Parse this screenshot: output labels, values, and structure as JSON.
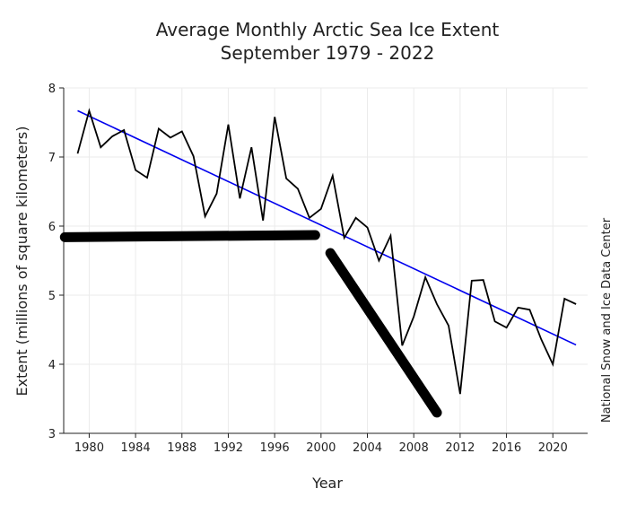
{
  "chart_data": {
    "type": "line",
    "title_line1": "Average Monthly Arctic Sea Ice Extent",
    "title_line2": "September 1979 - 2022",
    "xlabel": "Year",
    "ylabel": "Extent (millions of square kilometers)",
    "credit": "National Snow and Ice Data Center",
    "xlim": [
      1977.8,
      2023
    ],
    "ylim": [
      3,
      8
    ],
    "xticks": [
      1980,
      1984,
      1988,
      1992,
      1996,
      2000,
      2004,
      2008,
      2012,
      2016,
      2020
    ],
    "yticks": [
      3,
      4,
      5,
      6,
      7,
      8
    ],
    "grid": true,
    "series": [
      {
        "color": "#000000",
        "x": [
          1979,
          1980,
          1981,
          1982,
          1983,
          1984,
          1985,
          1986,
          1987,
          1988,
          1989,
          1990,
          1991,
          1992,
          1993,
          1994,
          1995,
          1996,
          1997,
          1998,
          1999,
          2000,
          2001,
          2002,
          2003,
          2004,
          2005,
          2006,
          2007,
          2008,
          2009,
          2010,
          2011,
          2012,
          2013,
          2014,
          2015,
          2016,
          2017,
          2018,
          2019,
          2020,
          2021,
          2022
        ],
        "values": [
          7.05,
          7.67,
          7.14,
          7.3,
          7.39,
          6.81,
          6.7,
          7.41,
          7.28,
          7.37,
          7.01,
          6.14,
          6.47,
          7.47,
          6.4,
          7.14,
          6.08,
          7.58,
          6.69,
          6.54,
          6.12,
          6.25,
          6.73,
          5.83,
          6.12,
          5.98,
          5.5,
          5.86,
          4.27,
          4.69,
          5.26,
          4.87,
          4.56,
          3.57,
          5.21,
          5.22,
          4.62,
          4.53,
          4.82,
          4.79,
          4.36,
          4.0,
          4.95,
          4.87
        ]
      }
    ],
    "trend": {
      "color": "#0000ee",
      "x": [
        1979,
        2022
      ],
      "values": [
        7.67,
        4.28
      ]
    },
    "annotations": [
      {
        "x": [
          1977.9,
          1999.5
        ],
        "values": [
          5.84,
          5.87
        ],
        "color": "#000000"
      },
      {
        "x": [
          2000.8,
          2010.0
        ],
        "values": [
          5.61,
          3.3
        ],
        "color": "#000000"
      }
    ]
  }
}
